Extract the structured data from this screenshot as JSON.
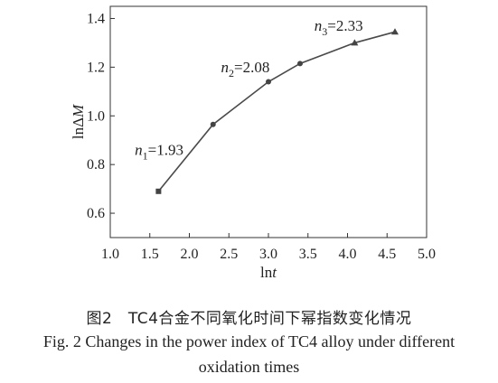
{
  "chart_data": {
    "type": "line",
    "xlabel_base": "ln",
    "xlabel_italic": "t",
    "ylabel_base": "lnΔ",
    "ylabel_italic": "M",
    "xlim": [
      1.0,
      5.0
    ],
    "ylim": [
      0.5,
      1.45
    ],
    "xticks": [
      "1.0",
      "1.5",
      "2.0",
      "2.5",
      "3.0",
      "3.5",
      "4.0",
      "4.5",
      "5.0"
    ],
    "yticks": [
      "0.6",
      "0.8",
      "1.0",
      "1.2",
      "1.4"
    ],
    "x": [
      1.61,
      2.3,
      3.0,
      3.4,
      4.09,
      4.6
    ],
    "y": [
      0.69,
      0.965,
      1.14,
      1.215,
      1.3,
      1.345
    ],
    "markers": [
      "square",
      "circle",
      "circle",
      "circle",
      "triangle",
      "triangle"
    ],
    "annotations": [
      {
        "letter": "n",
        "sub": "1",
        "text": "=1.93",
        "x": 1.31,
        "y": 0.84
      },
      {
        "letter": "n",
        "sub": "2",
        "text": "=2.08",
        "x": 2.4,
        "y": 1.18
      },
      {
        "letter": "n",
        "sub": "3",
        "text": "=2.33",
        "x": 3.58,
        "y": 1.35
      }
    ],
    "grid": false,
    "line_color": "#4a4a4a"
  },
  "caption": {
    "cn": "图2　TC4合金不同氧化时间下幂指数变化情况",
    "en_line1": "Fig. 2 Changes in the power index of TC4 alloy under different",
    "en_line2": "oxidation times"
  }
}
